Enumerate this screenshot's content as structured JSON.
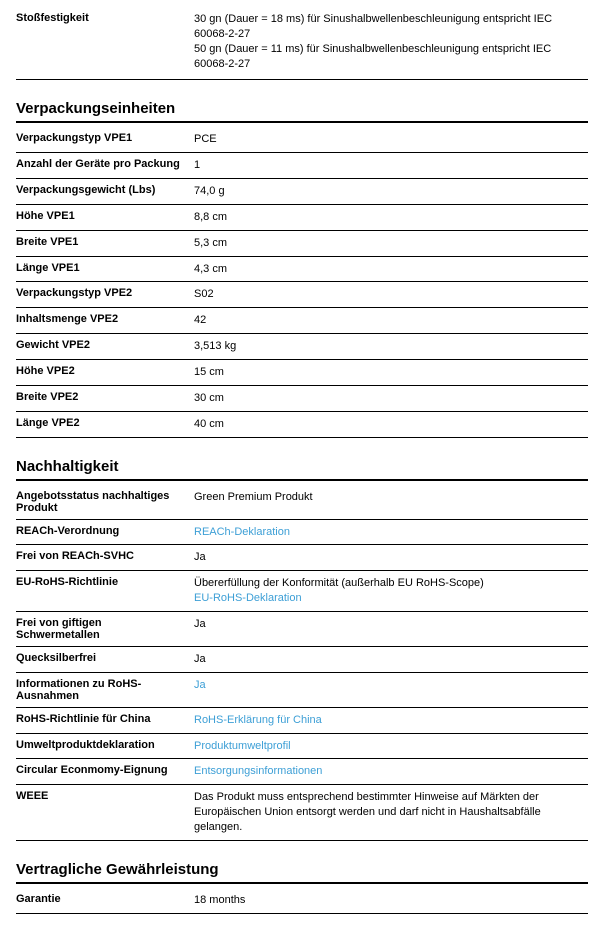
{
  "top": {
    "label": "Stoßfestigkeit",
    "line1": "30 gn (Dauer = 18 ms) für Sinushalbwellenbeschleunigung entspricht IEC 60068-2-27",
    "line2": "50 gn (Dauer = 11 ms) für Sinushalbwellenbeschleunigung entspricht IEC 60068-2-27"
  },
  "packaging": {
    "title": "Verpackungseinheiten",
    "rows": [
      {
        "label": "Verpackungstyp VPE1",
        "value": "PCE"
      },
      {
        "label": "Anzahl der Geräte pro Packung",
        "value": "1"
      },
      {
        "label": "Verpackungsgewicht (Lbs)",
        "value": "74,0 g"
      },
      {
        "label": "Höhe VPE1",
        "value": "8,8 cm"
      },
      {
        "label": "Breite VPE1",
        "value": "5,3 cm"
      },
      {
        "label": "Länge VPE1",
        "value": "4,3 cm"
      },
      {
        "label": "Verpackungstyp VPE2",
        "value": "S02"
      },
      {
        "label": "Inhaltsmenge VPE2",
        "value": "42"
      },
      {
        "label": "Gewicht VPE2",
        "value": "3,513 kg"
      },
      {
        "label": "Höhe VPE2",
        "value": "15 cm"
      },
      {
        "label": "Breite VPE2",
        "value": "30 cm"
      },
      {
        "label": "Länge VPE2",
        "value": "40 cm"
      }
    ]
  },
  "sustain": {
    "title": "Nachhaltigkeit",
    "r0": {
      "label": "Angebotsstatus nachhaltiges Produkt",
      "value": "Green Premium Produkt"
    },
    "r1": {
      "label": "REACh-Verordnung",
      "link": "REACh-Deklaration"
    },
    "r2": {
      "label": "Frei von REACh-SVHC",
      "value": "Ja"
    },
    "r3": {
      "label": "EU-RoHS-Richtlinie",
      "value": "Übererfüllung der Konformität (außerhalb EU RoHS-Scope)",
      "link": "EU-RoHS-Deklaration"
    },
    "r4": {
      "label": "Frei von giftigen Schwermetallen",
      "value": "Ja"
    },
    "r5": {
      "label": "Quecksilberfrei",
      "value": "Ja"
    },
    "r6": {
      "label": "Informationen zu RoHS-Ausnahmen",
      "link": "Ja"
    },
    "r7": {
      "label": "RoHS-Richtlinie für China",
      "link": "RoHS-Erklärung für China"
    },
    "r8": {
      "label": "Umweltproduktdeklaration",
      "link": "Produktumweltprofil"
    },
    "r9": {
      "label": "Circular Econmomy-Eignung",
      "link": "Entsorgungsinformationen"
    },
    "r10": {
      "label": "WEEE",
      "value": "Das Produkt muss entsprechend bestimmter Hinweise auf Märkten der Europäischen Union entsorgt werden und darf nicht in Haushaltsabfälle gelangen."
    }
  },
  "warranty": {
    "title": "Vertragliche Gewährleistung",
    "label": "Garantie",
    "value": "18 months"
  }
}
